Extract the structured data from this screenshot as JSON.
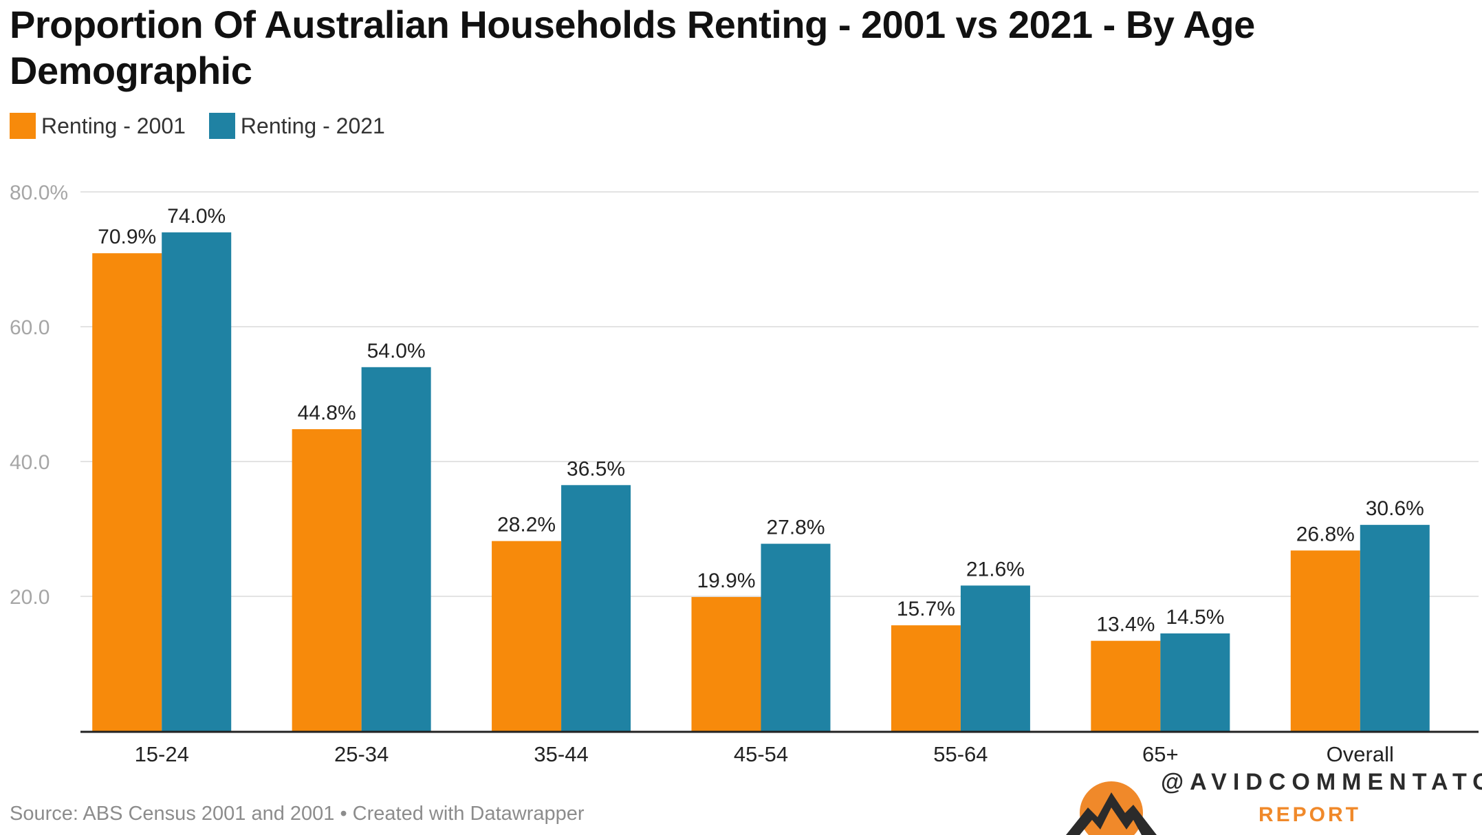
{
  "chart_data": {
    "type": "bar",
    "title": "Proportion Of Australian Households Renting - 2001 vs 2021 - By Age Demographic",
    "categories": [
      "15-24",
      "25-34",
      "35-44",
      "45-54",
      "55-64",
      "65+",
      "Overall"
    ],
    "series": [
      {
        "name": "Renting - 2001",
        "color": "#f78a0b",
        "values": [
          70.9,
          44.8,
          28.2,
          19.9,
          15.7,
          13.4,
          26.8
        ],
        "labels": [
          "70.9%",
          "44.8%",
          "28.2%",
          "19.9%",
          "15.7%",
          "13.4%",
          "26.8%"
        ]
      },
      {
        "name": "Renting - 2021",
        "color": "#1f82a3",
        "values": [
          74.0,
          54.0,
          36.5,
          27.8,
          21.6,
          14.5,
          30.6
        ],
        "labels": [
          "74.0%",
          "54.0%",
          "36.5%",
          "27.8%",
          "21.6%",
          "14.5%",
          "30.6%"
        ]
      }
    ],
    "yticks": [
      20,
      40,
      60,
      80
    ],
    "ytick_labels": [
      "20.0",
      "40.0",
      "60.0",
      "80.0%"
    ],
    "ylim": [
      0,
      80
    ],
    "xlabel": "",
    "ylabel": "",
    "legend_position": "top-left",
    "grid": true
  },
  "footer": {
    "source": "Source: ABS Census 2001 and 2001 • Created with Datawrapper"
  },
  "logo": {
    "handle": "@AVIDCOMMENTATOR",
    "subtitle": "REPORT",
    "sun_color": "#f0892a",
    "mountain_color": "#2b2b2b"
  }
}
